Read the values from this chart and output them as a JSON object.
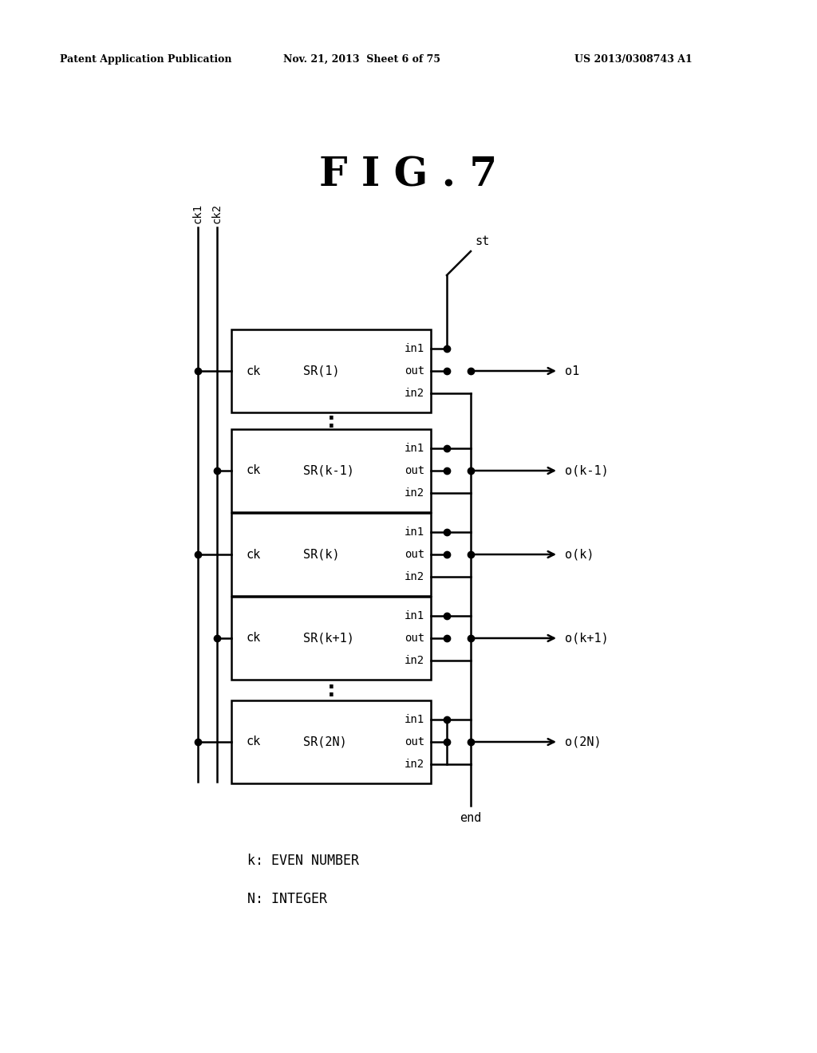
{
  "title": "F I G . 7",
  "header_left": "Patent Application Publication",
  "header_mid": "Nov. 21, 2013  Sheet 6 of 75",
  "header_right": "US 2013/0308743 A1",
  "bg_color": "#ffffff",
  "line_color": "#000000",
  "blocks": [
    {
      "name": "SR(1)"
    },
    {
      "name": "SR(k-1)"
    },
    {
      "name": "SR(k)"
    },
    {
      "name": "SR(k+1)"
    },
    {
      "name": "SR(2N)"
    }
  ],
  "outputs": [
    "o1",
    "o(k-1)",
    "o(k)",
    "o(k+1)",
    "o(2N)"
  ],
  "note1": "k: EVEN NUMBER",
  "note2": "N: INTEGER",
  "ck_alternates": [
    0,
    1,
    0,
    1,
    0
  ]
}
